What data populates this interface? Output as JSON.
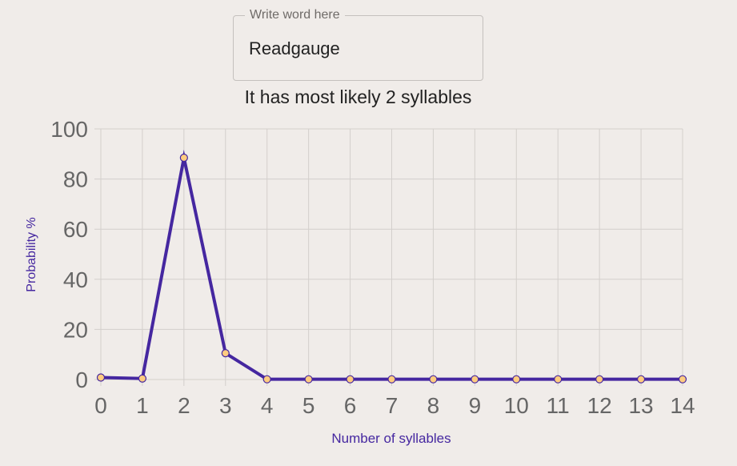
{
  "input": {
    "legend": "Write word here",
    "value": "Readgauge"
  },
  "result_text": "It has most likely 2 syllables",
  "colors": {
    "background": "#f0ece9",
    "line": "#4527a0",
    "point_fill": "#ffcc80",
    "grid": "#d3cfcc",
    "tick_text": "#666666"
  },
  "chart_data": {
    "type": "line",
    "x": [
      0,
      1,
      2,
      3,
      4,
      5,
      6,
      7,
      8,
      9,
      10,
      11,
      12,
      13,
      14
    ],
    "series": [
      {
        "values": [
          0.8,
          0.4,
          88.5,
          10.5,
          0.1,
          0.1,
          0.1,
          0.1,
          0.1,
          0.1,
          0.1,
          0.1,
          0.1,
          0.1,
          0.1
        ]
      }
    ],
    "xlabel": "Number of syllables",
    "ylabel": "Probability %",
    "xticks": [
      "0",
      "1",
      "2",
      "3",
      "4",
      "5",
      "6",
      "7",
      "8",
      "9",
      "10",
      "11",
      "12",
      "13",
      "14"
    ],
    "yticks": [
      "0",
      "20",
      "40",
      "60",
      "80",
      "100"
    ],
    "xlim": [
      0,
      14
    ],
    "ylim": [
      0,
      100
    ],
    "grid": true,
    "legend": "none"
  }
}
